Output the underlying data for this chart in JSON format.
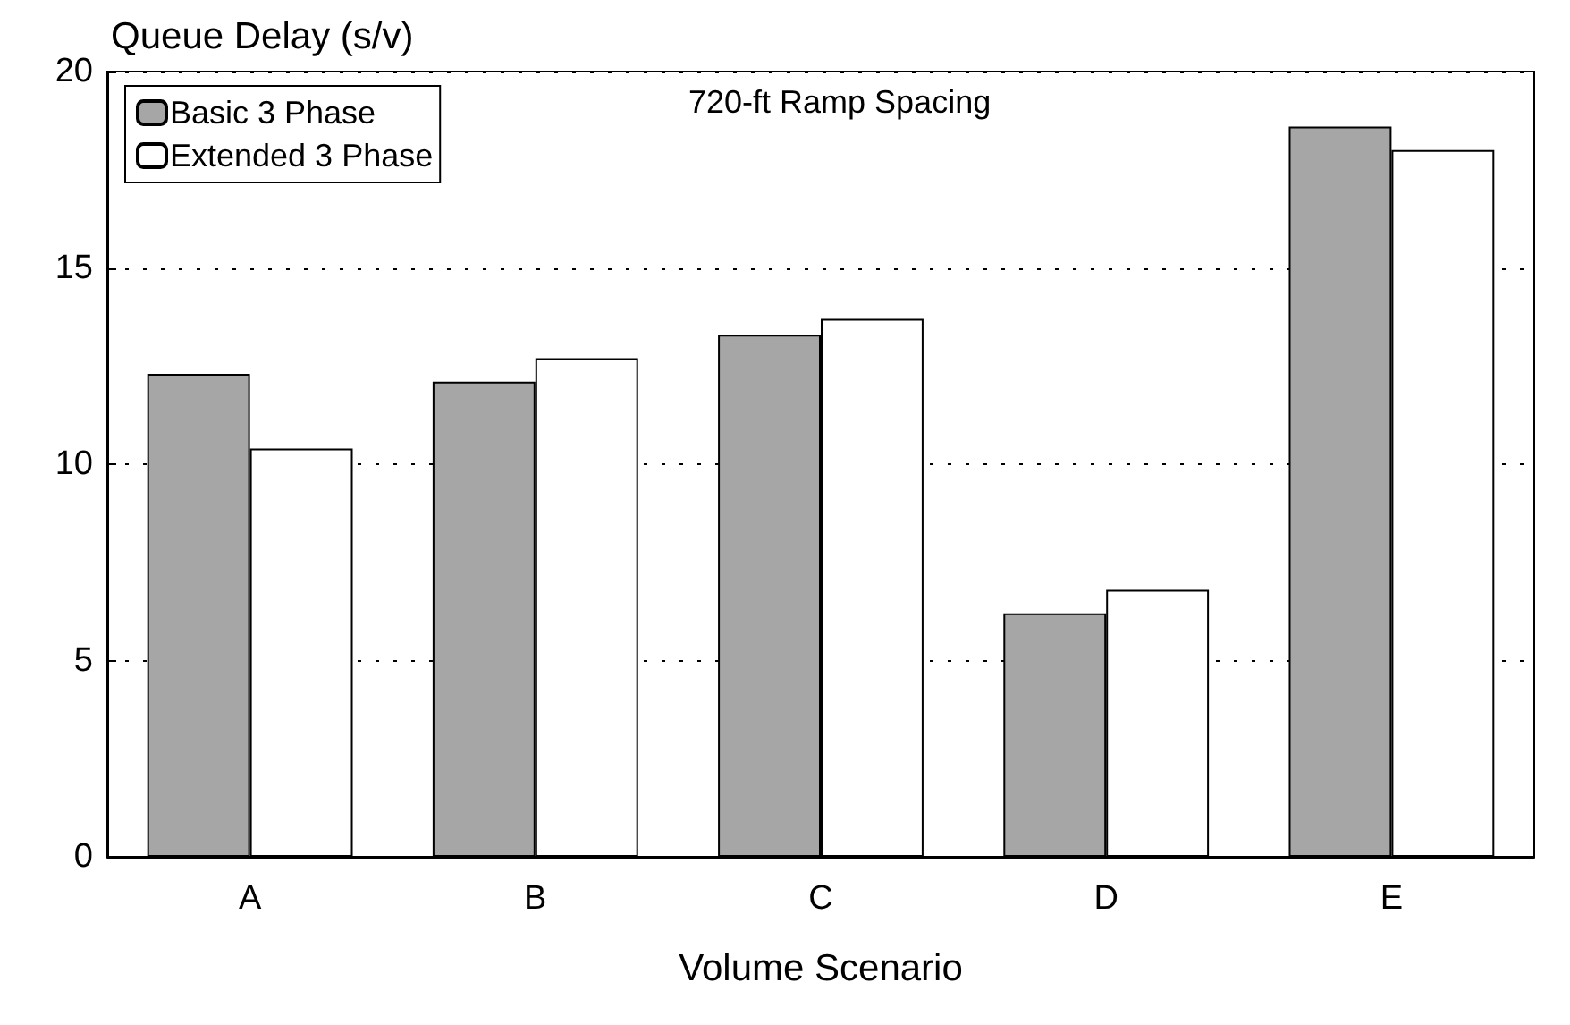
{
  "chart_data": {
    "type": "bar",
    "xlabel": "Volume Scenario",
    "ylabel": "Queue Delay (s/v)",
    "annotations": [
      "720-ft Ramp Spacing"
    ],
    "categories": [
      "A",
      "B",
      "C",
      "D",
      "E"
    ],
    "series": [
      {
        "name": "Basic 3 Phase",
        "color": "#a6a6a6",
        "values": [
          12.3,
          12.1,
          13.3,
          6.2,
          18.6
        ]
      },
      {
        "name": "Extended 3 Phase",
        "color": "#ffffff",
        "values": [
          10.4,
          12.7,
          13.7,
          6.8,
          18.0
        ]
      }
    ],
    "ylim": [
      0,
      20
    ],
    "yticks": [
      0,
      5,
      10,
      15,
      20
    ],
    "grid": "y",
    "legend": "top left"
  }
}
